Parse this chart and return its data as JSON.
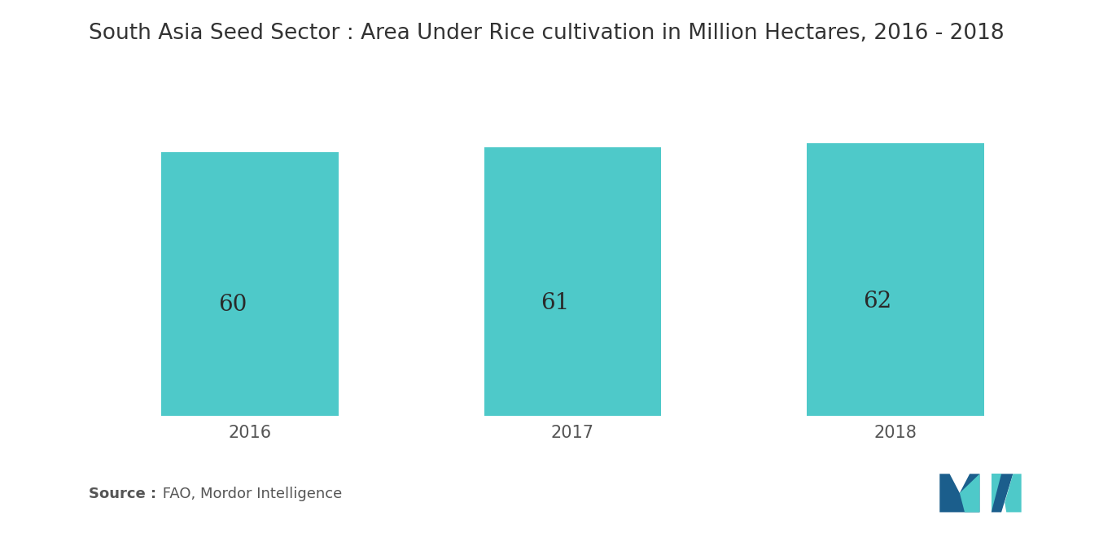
{
  "title": "South Asia Seed Sector : Area Under Rice cultivation in Million Hectares, 2016 - 2018",
  "categories": [
    "2016",
    "2017",
    "2018"
  ],
  "values": [
    60,
    61,
    62
  ],
  "bar_color": "#4EC9C9",
  "label_color": "#2a2a2a",
  "label_fontsize": 20,
  "title_fontsize": 19,
  "tick_fontsize": 15,
  "source_bold": "Source :",
  "source_normal": " FAO, Mordor Intelligence",
  "background_color": "#ffffff",
  "ylim": [
    0,
    80
  ],
  "bar_width": 0.55,
  "xlim_left": -0.5,
  "xlim_right": 2.5
}
